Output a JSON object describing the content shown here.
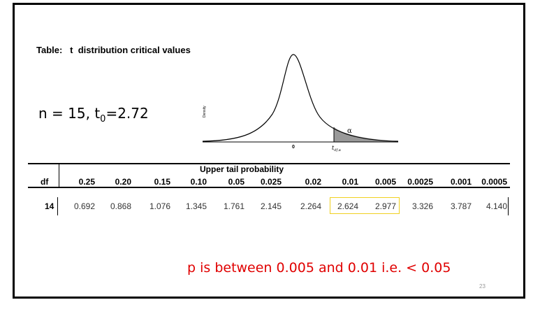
{
  "table_title": "Table:   t  distribution critical values",
  "given": {
    "prefix": "n = 15, t",
    "sub": "0",
    "suffix": "=2.72"
  },
  "curve": {
    "ylabel": "Density",
    "zero_label": "0",
    "alpha_label": "α",
    "crit_label": "t",
    "crit_sub": "df,α"
  },
  "table": {
    "upper_label": "Upper tail probability",
    "df_label": "df",
    "headers": [
      "0.25",
      "0.20",
      "0.15",
      "0.10",
      "0.05",
      "0.025",
      "0.02",
      "0.01",
      "0.005",
      "0.0025",
      "0.001",
      "0.0005"
    ],
    "rows": [
      {
        "df": "14",
        "values": [
          "0.692",
          "0.868",
          "1.076",
          "1.345",
          "1.761",
          "2.145",
          "2.264",
          "2.624",
          "2.977",
          "3.326",
          "3.787",
          "4.140"
        ]
      }
    ],
    "highlight_color": "#f0d020"
  },
  "note": "p is between 0.005 and 0.01 i.e. < 0.05",
  "page_number": "23"
}
